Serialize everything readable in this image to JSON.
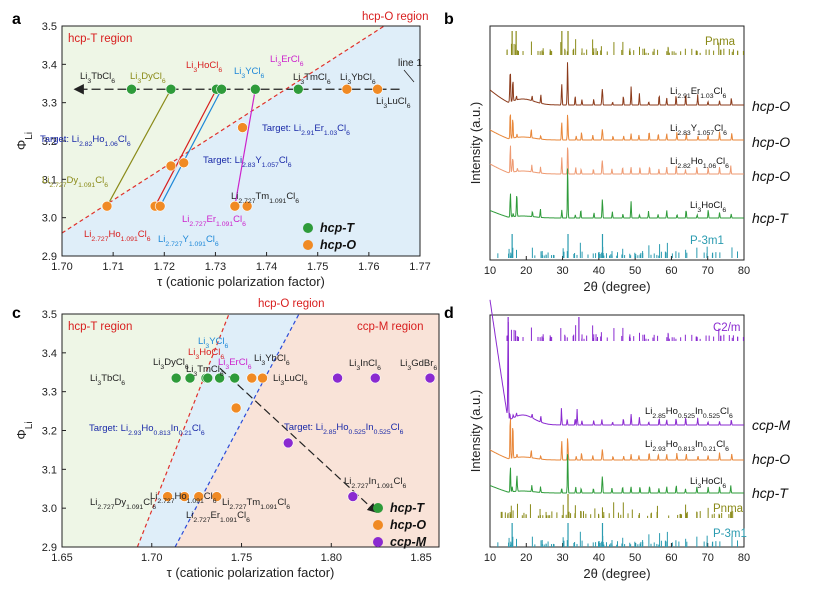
{
  "figure": "Four-panel figure: cationic polarization factor maps and XRD patterns",
  "chart_data": [
    {
      "panel": "a",
      "type": "scatter",
      "xlabel": "τ (cationic polarization factor)",
      "ylabel": "ΦLi",
      "xlim": [
        1.7,
        1.77
      ],
      "ylim": [
        2.9,
        3.5
      ],
      "xticks": [
        "1.70",
        "1.71",
        "1.72",
        "1.73",
        "1.74",
        "1.75",
        "1.76",
        "1.77"
      ],
      "yticks": [
        "2.9",
        "3.0",
        "3.1",
        "3.2",
        "3.3",
        "3.4",
        "3.5"
      ],
      "regions": [
        {
          "name": "hcp-T region",
          "color": "#eef6e6"
        },
        {
          "name": "hcp-O region",
          "color": "#dfeef9"
        }
      ],
      "boundary_lines": [
        {
          "name": "hcp-T/hcp-O boundary",
          "style": "dashed",
          "color": "#e0302a",
          "from": [
            1.7,
            2.96
          ],
          "to": [
            1.763,
            3.5
          ]
        }
      ],
      "line_1": {
        "name": "line 1",
        "y": 3.335,
        "x_range": [
          1.7025,
          1.766
        ]
      },
      "series": [
        {
          "name": "hcp-T",
          "color": "#2e9b3a",
          "points": [
            {
              "x": 1.7136,
              "y": 3.335,
              "label": "Li3TbCl6",
              "color": "#222222"
            },
            {
              "x": 1.7213,
              "y": 3.335,
              "label": "Li3DyCl6",
              "color": "#8a8a18"
            },
            {
              "x": 1.7302,
              "y": 3.335,
              "label": "Li3HoCl6",
              "color": "#d81e1e"
            },
            {
              "x": 1.7312,
              "y": 3.335,
              "label": "Li3YCl6",
              "color": "#1e88d8"
            },
            {
              "x": 1.7378,
              "y": 3.335,
              "label": "Li3ErCl6",
              "color": "#cc22cc"
            },
            {
              "x": 1.7462,
              "y": 3.335,
              "label": "Li3TmCl6",
              "color": "#222222"
            }
          ]
        },
        {
          "name": "hcp-O",
          "color": "#f08a24",
          "points": [
            {
              "x": 1.7557,
              "y": 3.335,
              "label": "Li3YbCl6",
              "color": "#222222"
            },
            {
              "x": 1.7617,
              "y": 3.335,
              "label": "Li3LuCl6",
              "color": "#222222"
            },
            {
              "x": 1.7088,
              "y": 3.03,
              "label": "Li2.727Dy1.091Cl6",
              "color": "#8a8a18"
            },
            {
              "x": 1.7182,
              "y": 3.03,
              "label": "Li2.727Ho1.091Cl6",
              "color": "#d81e1e"
            },
            {
              "x": 1.7192,
              "y": 3.03,
              "label": "Li2.727Y1.091Cl6",
              "color": "#1e88d8"
            },
            {
              "x": 1.7338,
              "y": 3.03,
              "label": "Li2.727Er1.091Cl6",
              "color": "#cc22cc"
            },
            {
              "x": 1.7362,
              "y": 3.03,
              "label": "Li2.727Tm1.091Cl6",
              "color": "#222222"
            },
            {
              "x": 1.7213,
              "y": 3.135,
              "label": "Target: Li2.82Ho1.06Cl6",
              "color": "#1a2aa8"
            },
            {
              "x": 1.7238,
              "y": 3.143,
              "label": "Target: Li2.83Y1.057Cl6",
              "color": "#1a2aa8"
            },
            {
              "x": 1.7353,
              "y": 3.235,
              "label": "Target: Li2.91Er1.03Cl6",
              "color": "#1a2aa8"
            }
          ]
        }
      ],
      "composition_lines": [
        {
          "color": "#8a8a18",
          "from": [
            1.7088,
            3.03
          ],
          "to": [
            1.7213,
            3.335
          ]
        },
        {
          "color": "#d81e1e",
          "from": [
            1.7182,
            3.03
          ],
          "to": [
            1.7302,
            3.335
          ]
        },
        {
          "color": "#1e88d8",
          "from": [
            1.7192,
            3.03
          ],
          "to": [
            1.7312,
            3.335
          ]
        },
        {
          "color": "#cc22cc",
          "from": [
            1.7338,
            3.03
          ],
          "to": [
            1.7378,
            3.335
          ]
        }
      ],
      "legend": [
        {
          "name": "hcp-T",
          "color": "#2e9b3a"
        },
        {
          "name": "hcp-O",
          "color": "#f08a24"
        }
      ]
    },
    {
      "panel": "c",
      "type": "scatter",
      "xlabel": "τ (cationic polarization factor)",
      "ylabel": "ΦLi",
      "xlim": [
        1.65,
        1.86
      ],
      "ylim": [
        2.9,
        3.5
      ],
      "xticks": [
        "1.65",
        "1.70",
        "1.75",
        "1.80",
        "1.85"
      ],
      "yticks": [
        "2.9",
        "3.0",
        "3.1",
        "3.2",
        "3.3",
        "3.4",
        "3.5"
      ],
      "regions": [
        {
          "name": "hcp-T region",
          "color": "#eef6e6"
        },
        {
          "name": "hcp-O region",
          "color": "#dfeef9"
        },
        {
          "name": "ccp-M region",
          "color": "#f9e3d8"
        }
      ],
      "boundary_lines": [
        {
          "name": "hcp-T/hcp-O boundary",
          "style": "dashed",
          "color": "#e0302a",
          "from": [
            1.692,
            2.9
          ],
          "to": [
            1.743,
            3.5
          ]
        },
        {
          "name": "hcp-O/ccp-M boundary",
          "style": "dashed",
          "color": "#2a4ad8",
          "from": [
            1.713,
            2.9
          ],
          "to": [
            1.782,
            3.5
          ]
        }
      ],
      "series": [
        {
          "name": "hcp-T",
          "color": "#2e9b3a",
          "points": [
            {
              "x": 1.7136,
              "y": 3.335,
              "label": "Li3TbCl6",
              "color": "#222222"
            },
            {
              "x": 1.7213,
              "y": 3.335,
              "label": "Li3DyCl6",
              "color": "#222222"
            },
            {
              "x": 1.7302,
              "y": 3.335,
              "label": "Li3HoCl6",
              "color": "#d81e1e"
            },
            {
              "x": 1.7312,
              "y": 3.335,
              "label": "Li3YCl6",
              "color": "#1e88d8"
            },
            {
              "x": 1.7378,
              "y": 3.335,
              "label": "Li3ErCl6",
              "color": "#cc22cc"
            },
            {
              "x": 1.7462,
              "y": 3.335,
              "label": "Li3TmCl6",
              "color": "#222222"
            }
          ]
        },
        {
          "name": "hcp-O",
          "color": "#f08a24",
          "points": [
            {
              "x": 1.7557,
              "y": 3.335,
              "label": "Li3YbCl6",
              "color": "#222222"
            },
            {
              "x": 1.7617,
              "y": 3.335,
              "label": "Li3LuCl6",
              "color": "#222222"
            },
            {
              "x": 1.7088,
              "y": 3.03,
              "label": "Li2.727Dy1.091Cl6",
              "color": "#222222"
            },
            {
              "x": 1.7182,
              "y": 3.03,
              "label": "Li2.727Ho1.091Cl6",
              "color": "#222222"
            },
            {
              "x": 1.7262,
              "y": 3.03,
              "label": "Li2.727Er1.091Cl6",
              "color": "#222222"
            },
            {
              "x": 1.7362,
              "y": 3.03,
              "label": "Li2.727Tm1.091Cl6",
              "color": "#222222"
            },
            {
              "x": 1.747,
              "y": 3.258,
              "label": "Target: Li2.93Ho0.813In0.21Cl6",
              "color": "#1a2aa8"
            }
          ]
        },
        {
          "name": "ccp-M",
          "color": "#8a2ad0",
          "points": [
            {
              "x": 1.8035,
              "y": 3.335,
              "label": "Li3InCl6",
              "color": "#222222"
            },
            {
              "x": 1.8245,
              "y": 3.335,
              "label": "",
              "color": "#222222"
            },
            {
              "x": 1.855,
              "y": 3.335,
              "label": "Li3GdBr6",
              "color": "#222222"
            },
            {
              "x": 1.776,
              "y": 3.168,
              "label": "Target: Li2.85Ho0.525In0.525Cl6",
              "color": "#1a2aa8"
            },
            {
              "x": 1.812,
              "y": 3.03,
              "label": "Li2.727In1.091Cl6",
              "color": "#222222"
            }
          ]
        }
      ],
      "arrow": {
        "from": [
          1.738,
          3.36
        ],
        "to": [
          1.825,
          2.99
        ]
      },
      "legend": [
        {
          "name": "hcp-T",
          "color": "#2e9b3a"
        },
        {
          "name": "hcp-O",
          "color": "#f08a24"
        },
        {
          "name": "ccp-M",
          "color": "#8a2ad0"
        }
      ]
    },
    {
      "panel": "b",
      "type": "line",
      "xlabel": "2θ (degree)",
      "ylabel": "Intensity (a.u.)",
      "xlim": [
        10,
        80
      ],
      "xticks": [
        "10",
        "20",
        "30",
        "40",
        "50",
        "60",
        "70",
        "80"
      ],
      "patterns": [
        {
          "name": "Pnma",
          "kind": "reference",
          "color": "#8a8a18",
          "phase": ""
        },
        {
          "name": "Li2.91Er1.03Cl6",
          "kind": "measured",
          "color": "#8b3a1a",
          "phase": "hcp-O"
        },
        {
          "name": "Li2.83Y1.057Cl6",
          "kind": "measured",
          "color": "#e8873a",
          "phase": "hcp-O"
        },
        {
          "name": "Li2.82Ho1.06Cl6",
          "kind": "measured",
          "color": "#ee9a72",
          "phase": "hcp-O"
        },
        {
          "name": "Li3HoCl6",
          "kind": "measured",
          "color": "#2e9b3a",
          "phase": "hcp-T"
        },
        {
          "name": "P-3m1",
          "kind": "reference",
          "color": "#2a9bb0",
          "phase": ""
        }
      ]
    },
    {
      "panel": "d",
      "type": "line",
      "xlabel": "2θ (degree)",
      "ylabel": "Intensity (a.u.)",
      "xlim": [
        10,
        80
      ],
      "xticks": [
        "10",
        "20",
        "30",
        "40",
        "50",
        "60",
        "70",
        "80"
      ],
      "patterns": [
        {
          "name": "C2/m",
          "kind": "reference",
          "color": "#8a2ad0",
          "phase": ""
        },
        {
          "name": "Li2.85Ho0.525In0.525Cl6",
          "kind": "measured",
          "color": "#8a2ad0",
          "phase": "ccp-M"
        },
        {
          "name": "Li2.93Ho0.813In0.21Cl6",
          "kind": "measured",
          "color": "#e8873a",
          "phase": "hcp-O"
        },
        {
          "name": "Li3HoCl6",
          "kind": "measured",
          "color": "#2e9b3a",
          "phase": "hcp-T"
        },
        {
          "name": "Pnma",
          "kind": "reference",
          "color": "#8a8a18",
          "phase": ""
        },
        {
          "name": "P-3m1",
          "kind": "reference",
          "color": "#2a9bb0",
          "phase": ""
        }
      ]
    }
  ],
  "panel_letters": {
    "a": "a",
    "b": "b",
    "c": "c",
    "d": "d"
  },
  "annotations": {
    "line1": "line 1"
  }
}
